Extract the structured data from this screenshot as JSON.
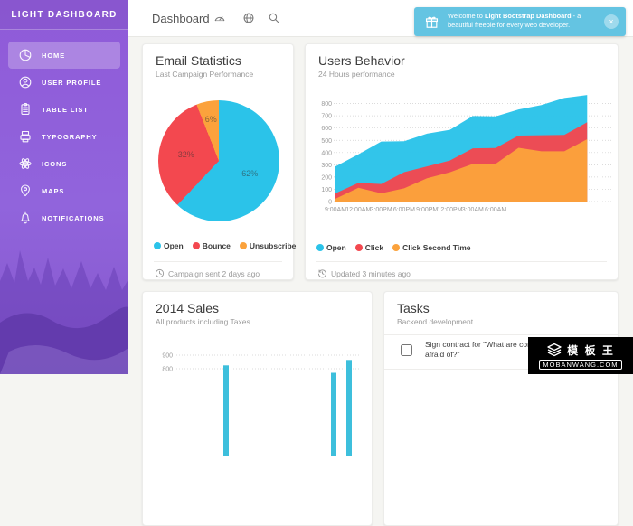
{
  "theme": {
    "sidebar_purple": "#9064DC",
    "toast_blue": "#64C4E2",
    "card_bg": "#FFFFFF",
    "page_bg": "#F5F5F2",
    "info_blue": "#2BC3E9",
    "danger_red": "#F3484F",
    "warning_orange": "#FBA23C",
    "sales_bar_blue": "#3DBFDC"
  },
  "sidebar": {
    "title": "LIGHT DASHBOARD",
    "items": [
      {
        "label": "HOME",
        "icon": "pie-chart-icon",
        "active": true
      },
      {
        "label": "USER PROFILE",
        "icon": "user-icon",
        "active": false
      },
      {
        "label": "TABLE LIST",
        "icon": "table-list-icon",
        "active": false
      },
      {
        "label": "TYPOGRAPHY",
        "icon": "typography-icon",
        "active": false
      },
      {
        "label": "ICONS",
        "icon": "atom-icon",
        "active": false
      },
      {
        "label": "MAPS",
        "icon": "map-pin-icon",
        "active": false
      },
      {
        "label": "NOTIFICATIONS",
        "icon": "bell-icon",
        "active": false
      }
    ]
  },
  "navbar": {
    "title": "Dashboard",
    "icons": [
      "gauge-icon",
      "globe-icon",
      "search-icon"
    ]
  },
  "toast": {
    "prefix": "Welcome to ",
    "bold": "Light Bootstrap Dashboard",
    "suffix": " - a beautiful freebie for every web developer.",
    "close": "×",
    "icon": "gift-icon"
  },
  "cards": {
    "email": {
      "title": "Email Statistics",
      "subtitle": "Last Campaign Performance",
      "footer": "Campaign sent 2 days ago",
      "footer_icon": "clock-icon"
    },
    "users": {
      "title": "Users Behavior",
      "subtitle": "24 Hours performance",
      "footer": "Updated 3 minutes ago",
      "footer_icon": "history-icon"
    },
    "sales": {
      "title": "2014 Sales",
      "subtitle": "All products including Taxes"
    },
    "tasks": {
      "title": "Tasks",
      "subtitle": "Backend development",
      "items": [
        {
          "checked": false,
          "text": "Sign contract for \"What are conference organizers afraid of?\""
        }
      ]
    }
  },
  "chart_data": [
    {
      "type": "pie",
      "title": "Email Statistics",
      "slices": [
        {
          "label": "Open",
          "value": 62,
          "color": "#2BC3E9"
        },
        {
          "label": "Bounce",
          "value": 32,
          "color": "#F3484F"
        },
        {
          "label": "Unsubscribe",
          "value": 6,
          "color": "#FBA23C"
        }
      ],
      "legend_position": "bottom",
      "start_angle": 0
    },
    {
      "type": "area",
      "title": "Users Behavior",
      "x_labels": [
        "9:00AM",
        "12:00AM",
        "3:00PM",
        "6:00PM",
        "9:00PM",
        "12:00PM",
        "3:00AM",
        "6:00AM"
      ],
      "y_ticks": [
        0,
        100,
        200,
        300,
        400,
        500,
        600,
        700,
        800
      ],
      "ylim": [
        0,
        900
      ],
      "grid": "dotted-horizontal",
      "series": [
        {
          "name": "Open",
          "color": "#2BC3E9",
          "values": [
            287,
            385,
            490,
            492,
            554,
            586,
            698,
            695,
            752,
            788,
            846,
            870
          ]
        },
        {
          "name": "Click",
          "color": "#F3484F",
          "values": [
            67,
            152,
            143,
            240,
            287,
            335,
            435,
            437,
            539,
            542,
            544,
            647
          ]
        },
        {
          "name": "Click Second Time",
          "color": "#FBA23C",
          "values": [
            23,
            113,
            67,
            108,
            190,
            239,
            307,
            308,
            439,
            410,
            410,
            509
          ]
        }
      ],
      "legend_position": "bottom"
    },
    {
      "type": "bar",
      "title": "2014 Sales",
      "partially_visible": true,
      "y_ticks": [
        900,
        800
      ],
      "slots": 12,
      "color": "#3DBFDC",
      "grid": "dotted-horizontal",
      "bars": [
        {
          "slot": 4,
          "value": 825
        },
        {
          "slot": 11,
          "value": 770
        },
        {
          "slot": 12,
          "value": 865
        }
      ]
    }
  ],
  "watermark": {
    "brand_cn": "模 板 王",
    "site": "MOBANWANG.COM"
  }
}
